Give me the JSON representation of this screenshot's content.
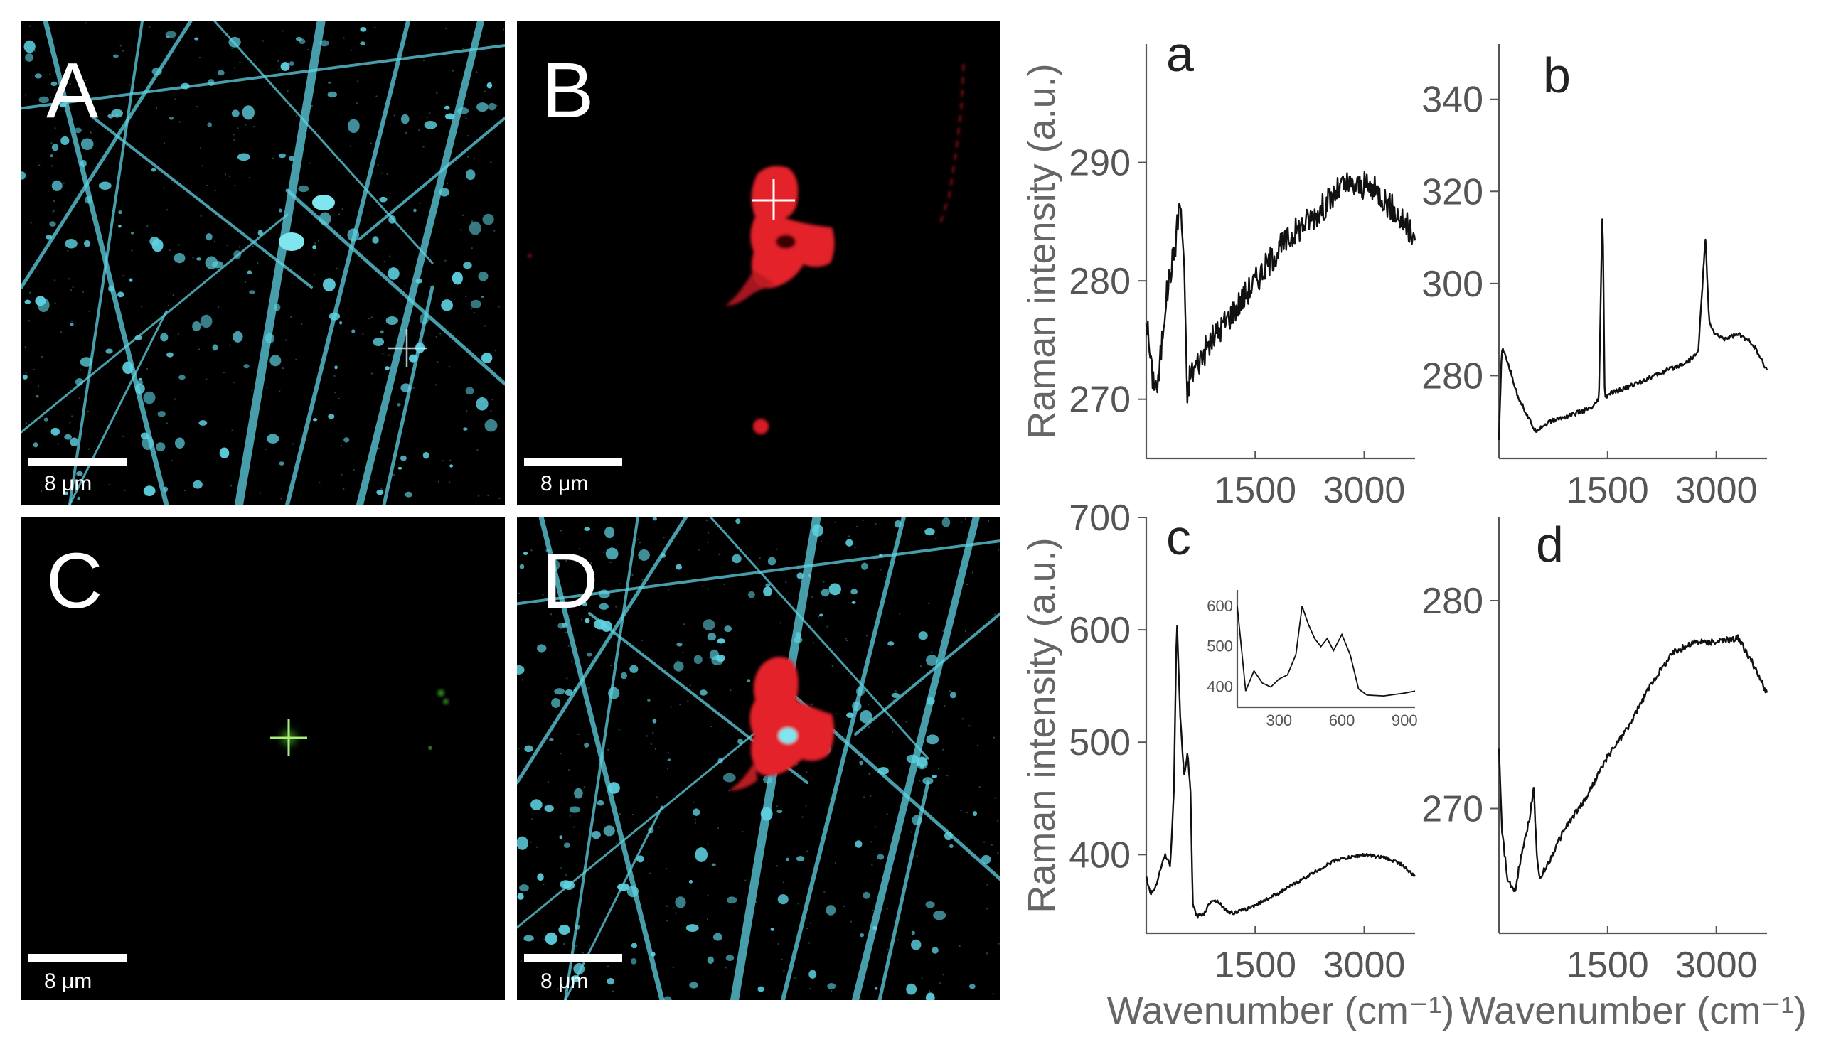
{
  "figure": {
    "image_panels": [
      {
        "label": "A",
        "scalebar": "8 μm",
        "channel": "cyan",
        "color": "#5fd3e3"
      },
      {
        "label": "B",
        "scalebar": "8 μm",
        "channel": "red",
        "color": "#e8232a"
      },
      {
        "label": "C",
        "scalebar": "8 μm",
        "channel": "green",
        "color": "#7fe04a"
      },
      {
        "label": "D",
        "scalebar": "8 μm",
        "channel": "overlay",
        "color": "#5fd3e3"
      }
    ]
  },
  "chart_data": [
    {
      "type": "line",
      "label": "a",
      "title": "",
      "xlabel": "",
      "ylabel": "Raman intensity (a.u.)",
      "xlim": [
        0,
        3700
      ],
      "ylim": [
        265,
        300
      ],
      "xticks": [
        1500,
        3000
      ],
      "yticks": [
        270,
        280,
        290
      ],
      "series": [
        {
          "x": [
            0,
            80,
            160,
            260,
            340,
            400,
            460,
            520,
            560,
            600,
            700,
            900,
            1200,
            1500,
            1800,
            2100,
            2400,
            2700,
            3000,
            3200,
            3400,
            3600,
            3700
          ],
          "y": [
            277,
            272,
            271,
            278,
            281,
            283,
            287,
            282,
            270,
            272,
            273,
            275,
            277.5,
            280,
            282.5,
            284.5,
            286,
            288,
            288,
            287.5,
            286,
            284.5,
            283
          ],
          "noise": 1.2
        }
      ]
    },
    {
      "type": "line",
      "label": "b",
      "title": "",
      "xlabel": "",
      "ylabel": "",
      "xlim": [
        0,
        3700
      ],
      "ylim": [
        262,
        352
      ],
      "xticks": [
        1500,
        3000
      ],
      "yticks": [
        280,
        300,
        320,
        340
      ],
      "series": [
        {
          "x": [
            0,
            40,
            120,
            250,
            400,
            500,
            700,
            900,
            1100,
            1300,
            1380,
            1430,
            1460,
            1520,
            1700,
            2000,
            2300,
            2600,
            2750,
            2850,
            2900,
            2980,
            3100,
            3300,
            3500,
            3700
          ],
          "y": [
            266,
            286,
            283,
            276,
            271,
            268,
            270,
            271,
            272,
            273,
            275,
            318,
            275,
            276,
            277,
            279,
            281,
            283,
            285,
            310,
            292,
            289,
            288,
            289,
            287,
            281
          ],
          "noise": 0.5
        }
      ]
    },
    {
      "type": "line",
      "label": "c",
      "title": "",
      "xlabel": "Wavenumber (cm⁻¹)",
      "ylabel": "Raman intensity (a.u.)",
      "xlim": [
        0,
        3700
      ],
      "ylim": [
        330,
        700
      ],
      "xticks": [
        1500,
        3000
      ],
      "yticks": [
        400,
        500,
        600,
        700
      ],
      "series": [
        {
          "x": [
            0,
            60,
            120,
            200,
            260,
            330,
            380,
            420,
            470,
            520,
            570,
            610,
            640,
            700,
            800,
            900,
            1000,
            1100,
            1200,
            1400,
            1800,
            2200,
            2600,
            3000,
            3300,
            3500,
            3700
          ],
          "y": [
            380,
            365,
            370,
            388,
            400,
            390,
            455,
            610,
            520,
            470,
            490,
            455,
            355,
            345,
            348,
            360,
            358,
            350,
            348,
            352,
            365,
            380,
            395,
            400,
            397,
            392,
            380
          ],
          "noise": 1.5
        }
      ],
      "inset": {
        "xlim": [
          100,
          950
        ],
        "ylim": [
          350,
          640
        ],
        "xticks": [
          300,
          600,
          900
        ],
        "yticks": [
          400,
          500,
          600
        ],
        "series": [
          {
            "x": [
              100,
              140,
              180,
              220,
              260,
              300,
              340,
              380,
              410,
              440,
              470,
              500,
              530,
              560,
              600,
              640,
              680,
              720,
              800,
              900,
              950
            ],
            "y": [
              600,
              390,
              440,
              410,
              400,
              420,
              430,
              480,
              600,
              555,
              520,
              500,
              520,
              490,
              530,
              480,
              395,
              380,
              378,
              385,
              390
            ]
          }
        ]
      }
    },
    {
      "type": "line",
      "label": "d",
      "title": "",
      "xlabel": "Wavenumber (cm⁻¹)",
      "ylabel": "",
      "xlim": [
        0,
        3700
      ],
      "ylim": [
        264,
        284
      ],
      "xticks": [
        1500,
        3000
      ],
      "yticks": [
        270,
        280
      ],
      "series": [
        {
          "x": [
            0,
            40,
            120,
            220,
            320,
            420,
            480,
            520,
            560,
            620,
            700,
            900,
            1200,
            1500,
            1800,
            2100,
            2400,
            2700,
            3000,
            3300,
            3500,
            3700
          ],
          "y": [
            273,
            269,
            266.5,
            266,
            268,
            269.5,
            271,
            268,
            266.5,
            267,
            267.5,
            269,
            270.5,
            272.5,
            274,
            276,
            277.5,
            278,
            278,
            278.2,
            277,
            275.5
          ],
          "noise": 0.15
        }
      ]
    }
  ]
}
